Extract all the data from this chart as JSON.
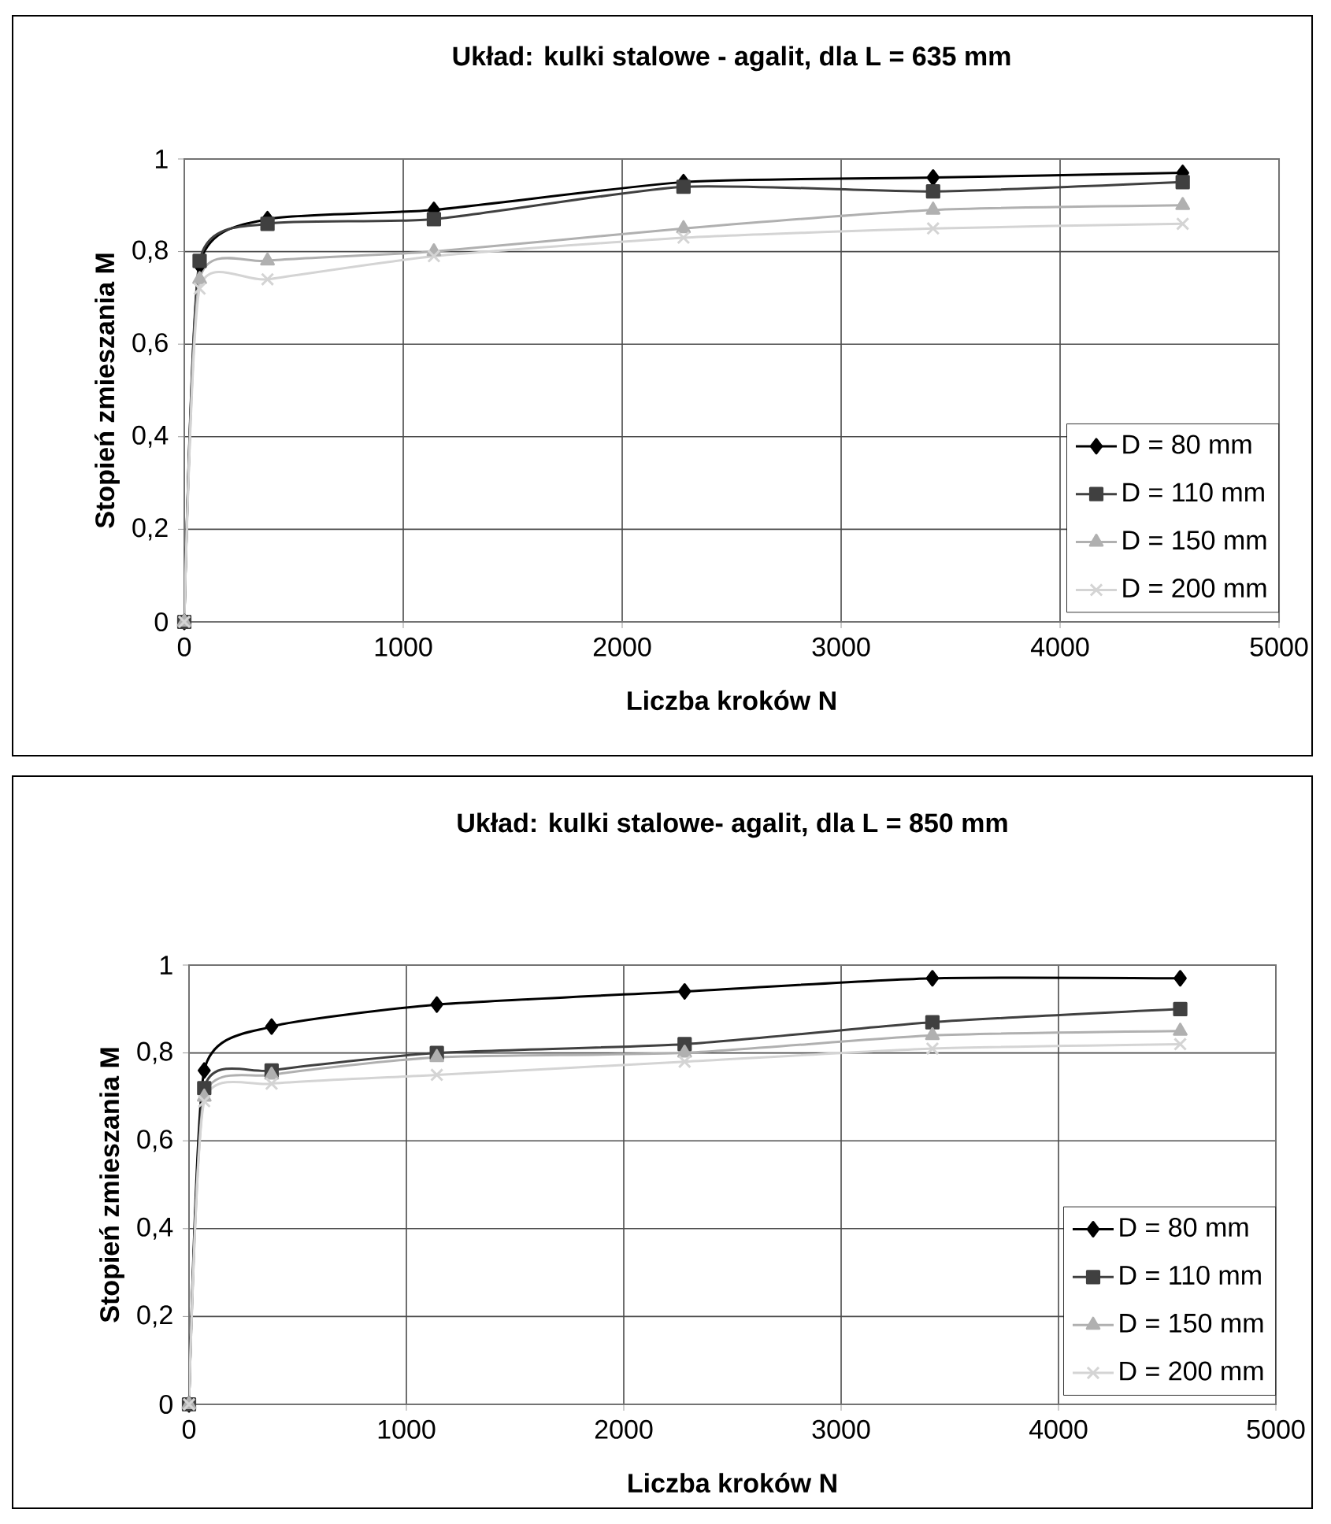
{
  "chart_data": [
    {
      "type": "line",
      "title": "Układ: kulki stalowe - agalit, dla L = 635 mm",
      "xlabel": "Liczba kroków  N",
      "ylabel": "Stopień zmieszania M",
      "xlim": [
        0,
        5000
      ],
      "xticks": [
        0,
        1000,
        2000,
        3000,
        4000,
        5000
      ],
      "ylim": [
        0,
        1
      ],
      "yticks": [
        {
          "value": 0,
          "label": "0"
        },
        {
          "value": 0.2,
          "label": "0,2"
        },
        {
          "value": 0.4,
          "label": "0,4"
        },
        {
          "value": 0.6,
          "label": "0,6"
        },
        {
          "value": 0.8,
          "label": "0,8"
        },
        {
          "value": 1,
          "label": "1"
        }
      ],
      "grid": true,
      "legend": "bottom right",
      "series": [
        {
          "name": "D = 80 mm",
          "color": "#000000",
          "marker": "diamond",
          "x": [
            0,
            70,
            380,
            1140,
            2280,
            3420,
            4560
          ],
          "values": [
            0,
            0.77,
            0.87,
            0.89,
            0.95,
            0.96,
            0.97
          ]
        },
        {
          "name": "D = 110 mm",
          "color": "#404040",
          "marker": "square",
          "x": [
            0,
            70,
            380,
            1140,
            2280,
            3420,
            4560
          ],
          "values": [
            0,
            0.78,
            0.86,
            0.87,
            0.94,
            0.93,
            0.95
          ]
        },
        {
          "name": "D = 150 mm",
          "color": "#b0b0b0",
          "marker": "triangle",
          "x": [
            0,
            70,
            380,
            1140,
            2280,
            3420,
            4560
          ],
          "values": [
            0,
            0.74,
            0.78,
            0.8,
            0.85,
            0.89,
            0.9
          ]
        },
        {
          "name": "D = 200 mm",
          "color": "#d4d4d4",
          "marker": "cross",
          "x": [
            0,
            70,
            380,
            1140,
            2280,
            3420,
            4560
          ],
          "values": [
            0,
            0.72,
            0.74,
            0.79,
            0.83,
            0.85,
            0.86
          ]
        }
      ]
    },
    {
      "type": "line",
      "title": "Układ: kulki stalowe- agalit, dla L = 850 mm",
      "xlabel": "Liczba kroków  N",
      "ylabel": "Stopień zmieszania M",
      "xlim": [
        0,
        5000
      ],
      "xticks": [
        0,
        1000,
        2000,
        3000,
        4000,
        5000
      ],
      "ylim": [
        0,
        1
      ],
      "yticks": [
        {
          "value": 0,
          "label": "0"
        },
        {
          "value": 0.2,
          "label": "0,2"
        },
        {
          "value": 0.4,
          "label": "0,4"
        },
        {
          "value": 0.6,
          "label": "0,6"
        },
        {
          "value": 0.8,
          "label": "0,8"
        },
        {
          "value": 1,
          "label": "1"
        }
      ],
      "grid": true,
      "legend": "bottom right",
      "series": [
        {
          "name": "D = 80 mm",
          "color": "#000000",
          "marker": "diamond",
          "x": [
            0,
            70,
            380,
            1140,
            2280,
            3420,
            4560
          ],
          "values": [
            0,
            0.76,
            0.86,
            0.91,
            0.94,
            0.97,
            0.97
          ]
        },
        {
          "name": "D = 110 mm",
          "color": "#404040",
          "marker": "square",
          "x": [
            0,
            70,
            380,
            1140,
            2280,
            3420,
            4560
          ],
          "values": [
            0,
            0.72,
            0.76,
            0.8,
            0.82,
            0.87,
            0.9
          ]
        },
        {
          "name": "D = 150 mm",
          "color": "#b0b0b0",
          "marker": "triangle",
          "x": [
            0,
            70,
            380,
            1140,
            2280,
            3420,
            4560
          ],
          "values": [
            0,
            0.7,
            0.75,
            0.79,
            0.8,
            0.84,
            0.85
          ]
        },
        {
          "name": "D = 200 mm",
          "color": "#d4d4d4",
          "marker": "cross",
          "x": [
            0,
            70,
            380,
            1140,
            2280,
            3420,
            4560
          ],
          "values": [
            0,
            0.69,
            0.73,
            0.75,
            0.78,
            0.81,
            0.82
          ]
        }
      ]
    }
  ]
}
